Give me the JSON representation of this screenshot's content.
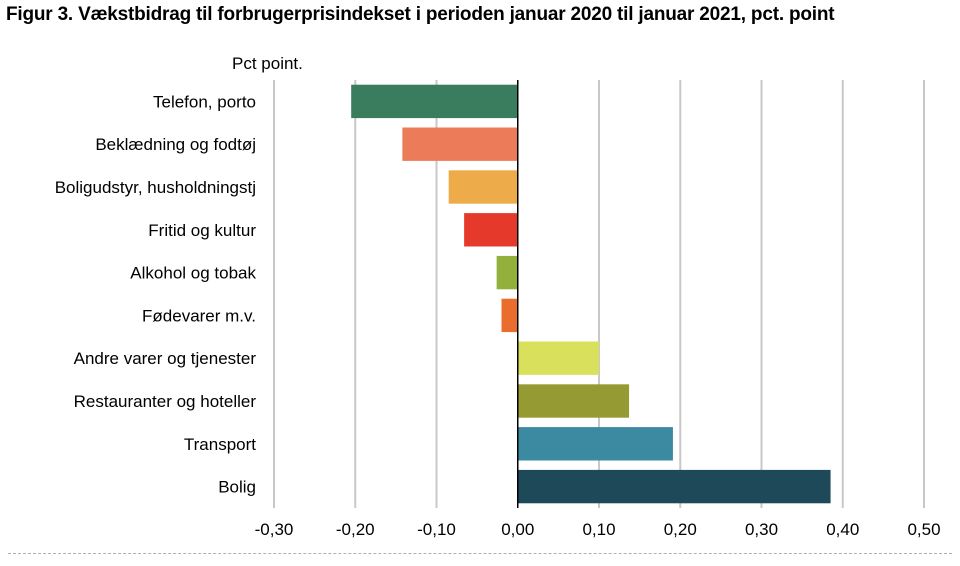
{
  "chart_data": {
    "type": "bar",
    "orientation": "horizontal",
    "title": "Figur 3. Vækstbidrag til forbrugerprisindekset i perioden januar 2020 til januar 2021, pct. point",
    "unit_label": "Pct point.",
    "xlim": [
      -0.3,
      0.5
    ],
    "ticks": [
      -0.3,
      -0.2,
      -0.1,
      0.0,
      0.1,
      0.2,
      0.3,
      0.4,
      0.5
    ],
    "tick_labels": [
      "-0,30",
      "-0,20",
      "-0,10",
      "0,00",
      "0,10",
      "0,20",
      "0,30",
      "0,40",
      "0,50"
    ],
    "grid": "vertical",
    "categories": [
      "Telefon, porto",
      "Beklædning og fodtøj",
      "Boligudstyr, husholdningstj",
      "Fritid og kultur",
      "Alkohol og tobak",
      "Fødevarer m.v.",
      "Andre varer og tjenester",
      "Restauranter og hoteller",
      "Transport",
      "Bolig"
    ],
    "values": [
      -0.205,
      -0.142,
      -0.085,
      -0.066,
      -0.026,
      -0.02,
      0.1,
      0.137,
      0.191,
      0.385
    ],
    "colors": [
      "#3a7d5e",
      "#ec7c59",
      "#eeab49",
      "#e53a2b",
      "#93b03b",
      "#ea6d2d",
      "#d9e05c",
      "#959a33",
      "#3b8aa1",
      "#1e4958"
    ]
  }
}
